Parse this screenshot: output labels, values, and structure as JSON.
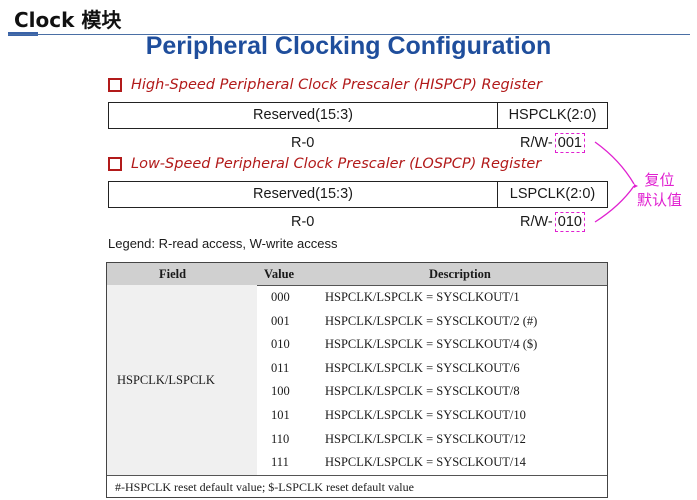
{
  "header": {
    "section_title": "Clock 模块",
    "slide_title": "Peripheral Clocking Configuration"
  },
  "registers": [
    {
      "heading": "High-Speed Peripheral Clock Prescaler (HISPCP) Register",
      "reserved_label": "Reserved(15:3)",
      "field_label": "HSPCLK(2:0)",
      "reserved_access": "R-0",
      "field_access_prefix": "R/W-",
      "field_reset": "001"
    },
    {
      "heading": "Low-Speed Peripheral Clock Prescaler (LOSPCP) Register",
      "reserved_label": "Reserved(15:3)",
      "field_label": "LSPCLK(2:0)",
      "reserved_access": "R-0",
      "field_access_prefix": "R/W-",
      "field_reset": "010"
    }
  ],
  "callout": {
    "line1": "复位",
    "line2": "默认值",
    "color": "#e020d0"
  },
  "legend": "Legend: R-read access, W-write access",
  "table": {
    "headers": [
      "Field",
      "Value",
      "Description"
    ],
    "field": "HSPCLK/LSPCLK",
    "rows": [
      {
        "value": "000",
        "description": "HSPCLK/LSPCLK = SYSCLKOUT/1"
      },
      {
        "value": "001",
        "description": "HSPCLK/LSPCLK = SYSCLKOUT/2 (#)"
      },
      {
        "value": "010",
        "description": "HSPCLK/LSPCLK = SYSCLKOUT/4 ($)"
      },
      {
        "value": "011",
        "description": "HSPCLK/LSPCLK = SYSCLKOUT/6"
      },
      {
        "value": "100",
        "description": "HSPCLK/LSPCLK = SYSCLKOUT/8"
      },
      {
        "value": "101",
        "description": "HSPCLK/LSPCLK = SYSCLKOUT/10"
      },
      {
        "value": "110",
        "description": "HSPCLK/LSPCLK = SYSCLKOUT/12"
      },
      {
        "value": "111",
        "description": "HSPCLK/LSPCLK = SYSCLKOUT/14"
      }
    ],
    "footnote": "#-HSPCLK reset default value; $-LSPCLK reset default value"
  },
  "colors": {
    "title_blue": "#1f4e9c",
    "heading_red": "#b21a1a",
    "highlight_magenta": "#e020d0",
    "table_header_gray": "#d0d0d0"
  }
}
